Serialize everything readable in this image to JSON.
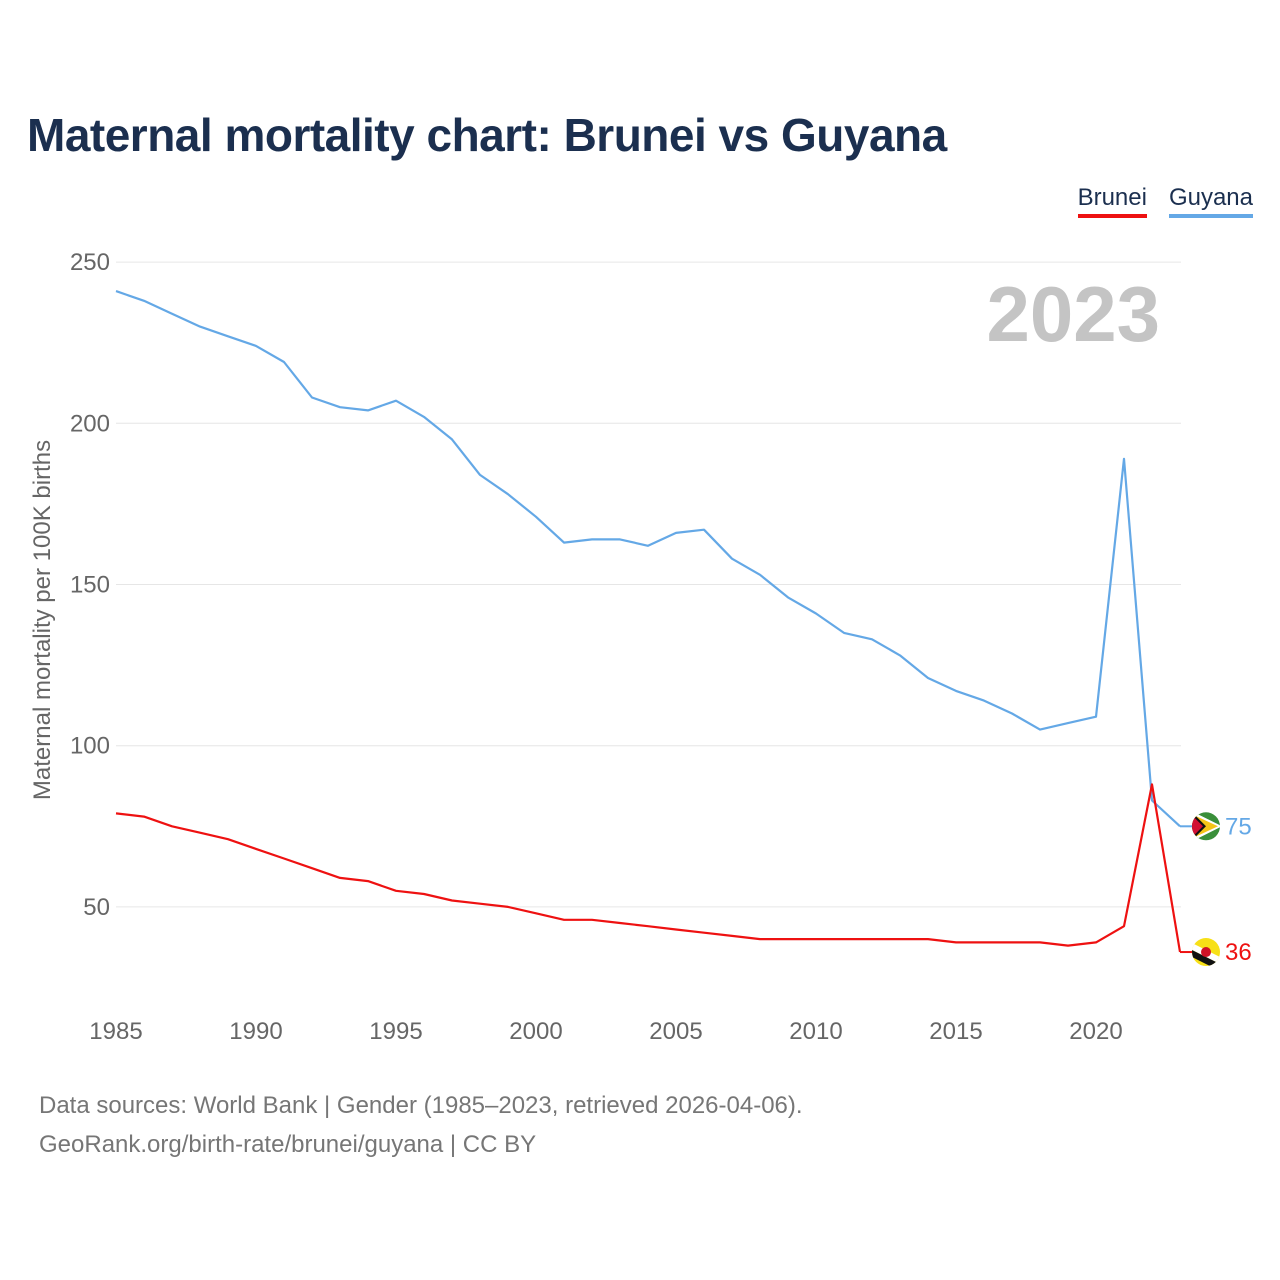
{
  "title": "Maternal mortality chart: Brunei vs Guyana",
  "legend": {
    "brunei": "Brunei",
    "guyana": "Guyana"
  },
  "source": {
    "line1": "Data sources: World Bank | Gender (1985–2023, retrieved 2026-04-06).",
    "line2": "GeoRank.org/birth-rate/brunei/guyana | CC BY"
  },
  "icons": {
    "brunei_flag": "brunei-flag-icon",
    "guyana_flag": "guyana-flag-icon"
  },
  "chart_data": {
    "type": "line",
    "ylabel": "Maternal mortality per 100K births",
    "xlabel": "",
    "year_label": "2023",
    "xlim": [
      1985,
      2023
    ],
    "ylim": [
      20,
      260
    ],
    "x_ticks": [
      1985,
      1990,
      1995,
      2000,
      2005,
      2010,
      2015,
      2020
    ],
    "y_ticks": [
      50,
      100,
      150,
      200,
      250
    ],
    "grid": true,
    "legend_position": "top-right",
    "x": [
      1985,
      1986,
      1987,
      1988,
      1989,
      1990,
      1991,
      1992,
      1993,
      1994,
      1995,
      1996,
      1997,
      1998,
      1999,
      2000,
      2001,
      2002,
      2003,
      2004,
      2005,
      2006,
      2007,
      2008,
      2009,
      2010,
      2011,
      2012,
      2013,
      2014,
      2015,
      2016,
      2017,
      2018,
      2019,
      2020,
      2021,
      2022,
      2023
    ],
    "series": [
      {
        "name": "Guyana",
        "color": "#64a8e6",
        "end_label": "75",
        "values": [
          241,
          238,
          234,
          230,
          227,
          224,
          219,
          208,
          205,
          204,
          207,
          202,
          195,
          184,
          178,
          171,
          163,
          164,
          164,
          162,
          166,
          167,
          158,
          153,
          146,
          141,
          135,
          133,
          128,
          121,
          117,
          114,
          110,
          105,
          107,
          109,
          189,
          83,
          75
        ]
      },
      {
        "name": "Brunei",
        "color": "#ee1111",
        "end_label": "36",
        "values": [
          79,
          78,
          75,
          73,
          71,
          68,
          65,
          62,
          59,
          58,
          55,
          54,
          52,
          51,
          50,
          48,
          46,
          46,
          45,
          44,
          43,
          42,
          41,
          40,
          40,
          40,
          40,
          40,
          40,
          40,
          39,
          39,
          39,
          39,
          38,
          39,
          44,
          88,
          36
        ]
      }
    ]
  }
}
